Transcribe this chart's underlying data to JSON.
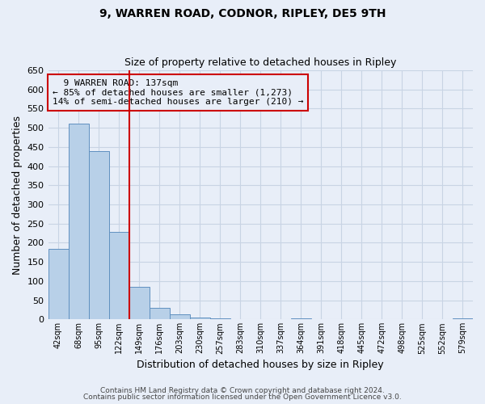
{
  "title": "9, WARREN ROAD, CODNOR, RIPLEY, DE5 9TH",
  "subtitle": "Size of property relative to detached houses in Ripley",
  "xlabel": "Distribution of detached houses by size in Ripley",
  "ylabel": "Number of detached properties",
  "footer_line1": "Contains HM Land Registry data © Crown copyright and database right 2024.",
  "footer_line2": "Contains public sector information licensed under the Open Government Licence v3.0.",
  "categories": [
    "42sqm",
    "68sqm",
    "95sqm",
    "122sqm",
    "149sqm",
    "176sqm",
    "203sqm",
    "230sqm",
    "257sqm",
    "283sqm",
    "310sqm",
    "337sqm",
    "364sqm",
    "391sqm",
    "418sqm",
    "445sqm",
    "472sqm",
    "498sqm",
    "525sqm",
    "552sqm",
    "579sqm"
  ],
  "values": [
    185,
    510,
    440,
    228,
    85,
    30,
    13,
    4,
    2,
    1,
    1,
    1,
    2,
    0,
    0,
    0,
    0,
    1,
    0,
    0,
    2
  ],
  "bar_color": "#b8d0e8",
  "bar_edge_color": "#6090c0",
  "vline_color": "#cc0000",
  "ylim": [
    0,
    650
  ],
  "yticks": [
    0,
    50,
    100,
    150,
    200,
    250,
    300,
    350,
    400,
    450,
    500,
    550,
    600,
    650
  ],
  "annotation_title": "9 WARREN ROAD: 137sqm",
  "annotation_line1": "← 85% of detached houses are smaller (1,273)",
  "annotation_line2": "14% of semi-detached houses are larger (210) →",
  "annotation_box_color": "#cc0000",
  "grid_color": "#c8d4e4",
  "bg_color": "#e8eef8",
  "title_fontsize": 10,
  "subtitle_fontsize": 9
}
